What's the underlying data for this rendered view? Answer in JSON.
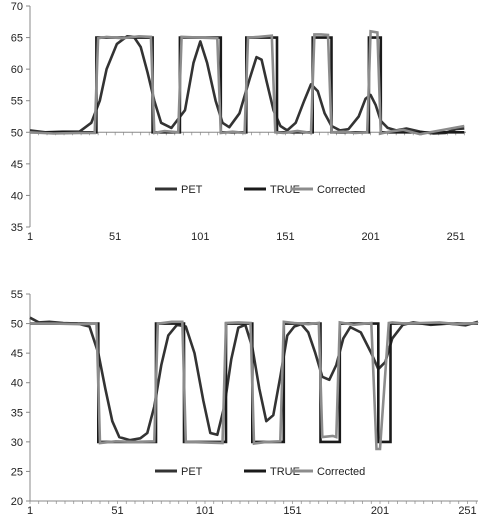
{
  "chart_data": [
    {
      "type": "line",
      "title": "",
      "xlabel": "",
      "ylabel": "",
      "xlim": [
        1,
        257
      ],
      "ylim": [
        35,
        70
      ],
      "x_ticks": [
        "1",
        "51",
        "101",
        "151",
        "201",
        "251"
      ],
      "y_ticks": [
        "35",
        "40",
        "45",
        "50",
        "55",
        "60",
        "65",
        "70"
      ],
      "legend_position": "bottom",
      "baseline": 50,
      "grid": false,
      "series": [
        {
          "name": "PET",
          "color": "#333333",
          "x": [
            1,
            10,
            20,
            30,
            37,
            42,
            46,
            52,
            58,
            62,
            66,
            70,
            74,
            78,
            84,
            92,
            97,
            101,
            105,
            110,
            114,
            118,
            124,
            130,
            134,
            137,
            140,
            144,
            148,
            152,
            157,
            162,
            166,
            170,
            174,
            178,
            183,
            188,
            194,
            198,
            201,
            204,
            207,
            211,
            216,
            222,
            230,
            238,
            245,
            251,
            256
          ],
          "y": [
            50.3,
            50,
            50.1,
            50.1,
            51.5,
            55,
            60,
            64,
            65.2,
            65.1,
            63.5,
            59.5,
            55,
            51.5,
            50.7,
            53.5,
            61,
            64.4,
            61,
            55,
            51.5,
            50.8,
            53,
            58.5,
            61.9,
            61.5,
            58,
            53.5,
            51,
            50.3,
            51.5,
            55,
            57.6,
            56.5,
            53,
            51,
            50.3,
            50.5,
            52.5,
            55.3,
            55.9,
            54.3,
            51.8,
            50.7,
            50.3,
            50.6,
            50.1,
            49.8,
            49.9,
            50.5,
            50.6
          ]
        },
        {
          "name": "TRUE",
          "color": "#1a1a1a",
          "x": [
            1,
            40,
            40,
            73,
            73,
            89,
            89,
            113,
            113,
            128,
            128,
            146,
            146,
            167,
            167,
            178,
            178,
            200,
            200,
            207,
            207,
            256
          ],
          "y": [
            50,
            50,
            65,
            65,
            50,
            50,
            65,
            65,
            50,
            50,
            65,
            65,
            50,
            50,
            65,
            65,
            50,
            50,
            65,
            65,
            50,
            50
          ]
        },
        {
          "name": "Corrected",
          "color": "#8c8c8c",
          "x": [
            1,
            15,
            30,
            39,
            41,
            46,
            55,
            65,
            72,
            74,
            80,
            88,
            90,
            100,
            111,
            113,
            120,
            127,
            129,
            135,
            143,
            145,
            150,
            158,
            166,
            168,
            172,
            176,
            178,
            185,
            192,
            199,
            201,
            205,
            207,
            212,
            220,
            230,
            240,
            248,
            256
          ],
          "y": [
            50,
            49.8,
            49.9,
            49.9,
            64.9,
            65.1,
            64.9,
            65.2,
            65.1,
            49.9,
            50.2,
            50,
            65.1,
            65,
            64.9,
            49.9,
            50.1,
            49.9,
            65,
            65.1,
            65.3,
            50,
            49.9,
            50.2,
            49.9,
            65.5,
            65.5,
            65.4,
            50,
            50.1,
            49.9,
            50,
            66,
            65.8,
            49.8,
            50.1,
            50.4,
            49.7,
            50.2,
            50.6,
            51
          ]
        }
      ]
    },
    {
      "type": "line",
      "title": "",
      "xlabel": "",
      "ylabel": "",
      "xlim": [
        1,
        257
      ],
      "ylim": [
        20,
        55
      ],
      "x_ticks": [
        "1",
        "51",
        "101",
        "151",
        "201",
        "251"
      ],
      "y_ticks": [
        "20",
        "25",
        "30",
        "35",
        "40",
        "45",
        "50",
        "55"
      ],
      "legend_position": "bottom",
      "baseline": 20,
      "grid": false,
      "series": [
        {
          "name": "PET",
          "color": "#333333",
          "x": [
            1,
            6,
            12,
            20,
            28,
            35,
            40,
            44,
            48,
            52,
            58,
            64,
            68,
            72,
            76,
            80,
            85,
            90,
            95,
            100,
            104,
            108,
            112,
            116,
            120,
            124,
            128,
            132,
            136,
            140,
            144,
            148,
            152,
            156,
            160,
            164,
            168,
            172,
            176,
            180,
            184,
            190,
            196,
            200,
            204,
            208,
            214,
            220,
            230,
            240,
            250,
            257
          ],
          "y": [
            51,
            50.2,
            50.3,
            50.1,
            50,
            49.5,
            45,
            39,
            33.5,
            30.8,
            30.3,
            30.6,
            31.5,
            36,
            43,
            48,
            49.8,
            49.5,
            45,
            37,
            31.5,
            31.2,
            36,
            44,
            49.3,
            49.8,
            46,
            39,
            33.5,
            34.5,
            41,
            48,
            49.5,
            49.9,
            48.5,
            45,
            41,
            40.5,
            43,
            47.5,
            49.4,
            48.5,
            45,
            42.3,
            43.5,
            47.5,
            49.8,
            50.2,
            49.8,
            50,
            49.7,
            50.3
          ]
        },
        {
          "name": "TRUE",
          "color": "#1a1a1a",
          "x": [
            1,
            40,
            40,
            73,
            73,
            89,
            89,
            113,
            113,
            128,
            128,
            146,
            146,
            167,
            167,
            178,
            178,
            200,
            200,
            207,
            207,
            257
          ],
          "y": [
            50,
            50,
            30,
            30,
            50,
            50,
            30,
            30,
            50,
            50,
            30,
            30,
            50,
            50,
            30,
            30,
            50,
            50,
            30,
            30,
            50,
            50
          ]
        },
        {
          "name": "Corrected",
          "color": "#8c8c8c",
          "x": [
            1,
            15,
            30,
            39,
            41,
            50,
            60,
            72,
            74,
            82,
            88,
            90,
            100,
            111,
            113,
            120,
            127,
            129,
            136,
            144,
            146,
            152,
            160,
            166,
            168,
            174,
            176,
            178,
            186,
            196,
            199,
            201,
            206,
            208,
            215,
            225,
            235,
            245,
            257
          ],
          "y": [
            50,
            50,
            49.9,
            50,
            29.8,
            30.1,
            30,
            30.1,
            50,
            50.3,
            50.3,
            30,
            29.9,
            29.8,
            50.1,
            50.2,
            50.1,
            29.7,
            30,
            30.1,
            50.3,
            50.1,
            49.9,
            50.1,
            30.8,
            31,
            30.8,
            50.2,
            49.8,
            50.1,
            28.8,
            28.8,
            50.1,
            50.2,
            50,
            50.1,
            50.2,
            49.9,
            50.1
          ]
        }
      ]
    }
  ]
}
